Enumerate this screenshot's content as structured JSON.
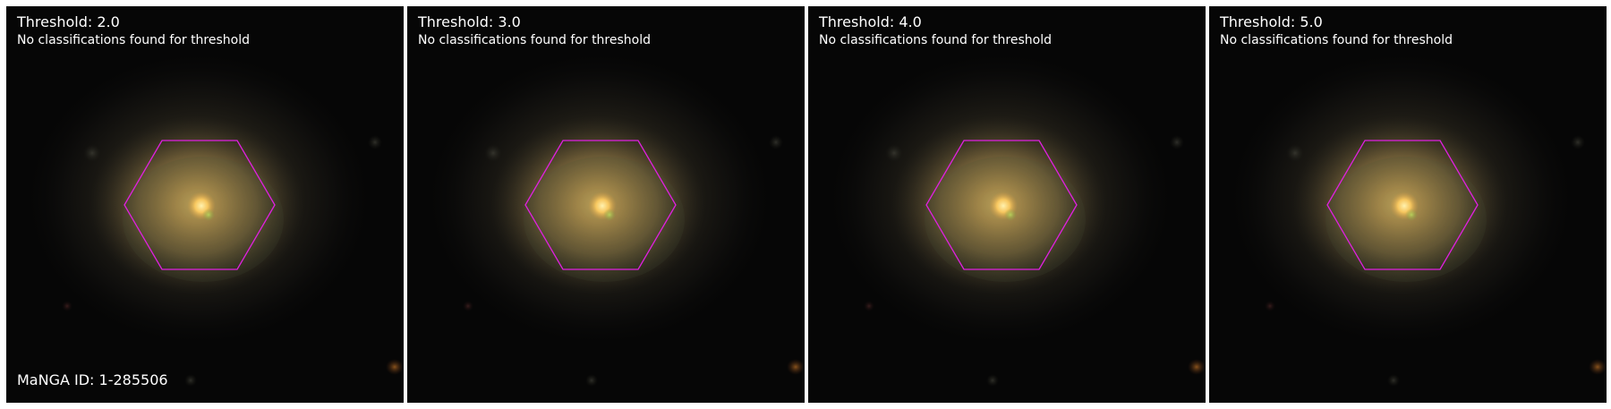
{
  "colors": {
    "hexagon": "#e020e0",
    "background": "#050505",
    "text": "#ffffff"
  },
  "panels": [
    {
      "title": "Threshold: 2.0",
      "subtitle": "No classifications found for threshold"
    },
    {
      "title": "Threshold: 3.0",
      "subtitle": "No classifications found for threshold"
    },
    {
      "title": "Threshold: 4.0",
      "subtitle": "No classifications found for threshold"
    },
    {
      "title": "Threshold: 5.0",
      "subtitle": "No classifications found for threshold"
    }
  ],
  "manga_id_label": "MaNGA ID: 1-285506"
}
